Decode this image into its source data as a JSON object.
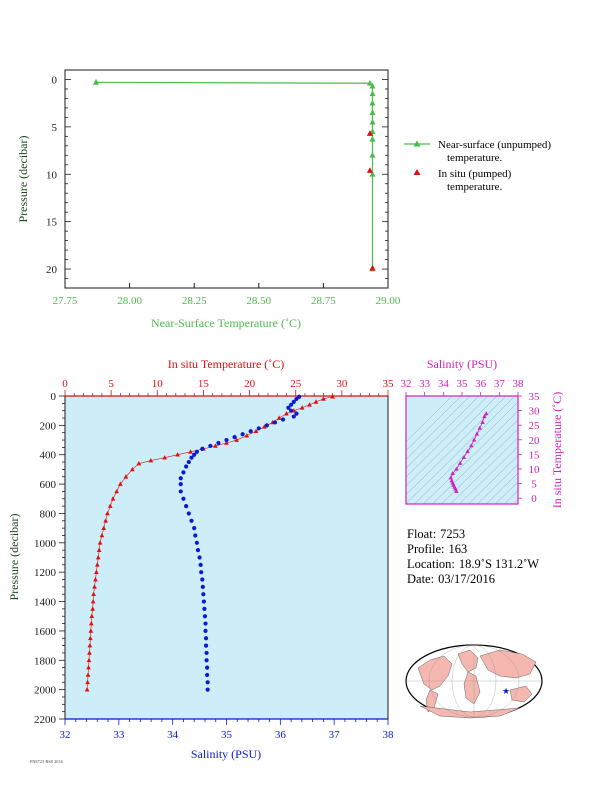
{
  "top_plot": {
    "xlabel": "Near-Surface Temperature (˚C)",
    "ylabel": "Pressure (decibar)",
    "legend": [
      {
        "label_line1": "Near-surface (unpumped)",
        "label_line2": "temperature.",
        "color": "#4cbb4c"
      },
      {
        "label_line1": "In situ (pumped)",
        "label_line2": "temperature.",
        "color": "#e01010"
      }
    ]
  },
  "profile_plot": {
    "top_xlabel": "In situ Temperature (˚C)",
    "bottom_xlabel": "Salinity (PSU)",
    "ylabel": "Pressure (decibar)"
  },
  "ts_plot": {
    "top_xlabel": "Salinity (PSU)",
    "right_ylabel": "In situ Temperature (˚C)"
  },
  "float_info": {
    "float_label": "Float:",
    "float_value": "7253",
    "profile_label": "Profile:",
    "profile_value": "163",
    "location_label": "Location:",
    "location_value": "18.9˚S  131.2˚W",
    "date_label": "Date:",
    "date_value": "03/17/2016"
  },
  "footnote": "FN8723 RS8 2016",
  "colors": {
    "surface_green": "#4cbb4c",
    "temp_red": "#e01010",
    "salinity_blue": "#0a1ad0",
    "ts_magenta": "#d020c0",
    "axis_dark": "#1a1a1a",
    "panel_fill": "#cdeef8"
  },
  "chart_data": [
    {
      "type": "line",
      "name": "near-surface-temperature",
      "xlim": [
        27.75,
        29.0
      ],
      "ylim": [
        22,
        -1
      ],
      "xticks": [
        27.75,
        28.0,
        28.25,
        28.5,
        28.75,
        29.0
      ],
      "yticks": [
        0,
        5,
        10,
        15,
        20
      ],
      "series": [
        {
          "name": "Near-surface (unpumped) temperature.",
          "marker": "triangle",
          "color": "#4cbb4c",
          "points": [
            [
              27.87,
              0.3
            ],
            [
              28.93,
              0.4
            ],
            [
              28.94,
              0.7
            ],
            [
              28.94,
              1.5
            ],
            [
              28.94,
              2.5
            ],
            [
              28.94,
              3.5
            ],
            [
              28.94,
              4.5
            ],
            [
              28.94,
              5.5
            ],
            [
              28.94,
              6.3
            ],
            [
              28.94,
              8.0
            ],
            [
              28.94,
              10.0
            ],
            [
              28.94,
              20.0
            ]
          ]
        },
        {
          "name": "In situ (pumped) temperature.",
          "marker": "triangle",
          "color": "#e01010",
          "points": [
            [
              28.93,
              5.7
            ],
            [
              28.93,
              9.6
            ],
            [
              28.94,
              19.9
            ]
          ]
        }
      ]
    },
    {
      "type": "scatter",
      "name": "temperature-salinity-profile",
      "ylim": [
        2200,
        0
      ],
      "yticks": [
        0,
        200,
        400,
        600,
        800,
        1000,
        1200,
        1400,
        1600,
        1800,
        2000,
        2200
      ],
      "temperature_axis": {
        "xlim": [
          0,
          35
        ],
        "xticks": [
          0,
          5,
          10,
          15,
          20,
          25,
          30,
          35
        ]
      },
      "salinity_axis": {
        "xlim": [
          32,
          38
        ],
        "xticks": [
          32,
          33,
          34,
          35,
          36,
          37,
          38
        ]
      },
      "series": [
        {
          "name": "In situ Temperature",
          "marker": "triangle",
          "color": "#e01010",
          "points": [
            [
              29.0,
              5
            ],
            [
              28.0,
              20
            ],
            [
              27.2,
              40
            ],
            [
              26.5,
              60
            ],
            [
              25.7,
              80
            ],
            [
              24.8,
              100
            ],
            [
              24.0,
              120
            ],
            [
              23.2,
              150
            ],
            [
              22.5,
              180
            ],
            [
              21.6,
              210
            ],
            [
              20.7,
              240
            ],
            [
              19.7,
              270
            ],
            [
              18.6,
              300
            ],
            [
              17.5,
              320
            ],
            [
              16.3,
              340
            ],
            [
              15.0,
              360
            ],
            [
              13.6,
              380
            ],
            [
              12.2,
              400
            ],
            [
              10.8,
              420
            ],
            [
              9.3,
              440
            ],
            [
              8.0,
              460
            ],
            [
              7.3,
              500
            ],
            [
              6.6,
              550
            ],
            [
              6.0,
              600
            ],
            [
              5.6,
              650
            ],
            [
              5.2,
              700
            ],
            [
              4.9,
              750
            ],
            [
              4.6,
              800
            ],
            [
              4.4,
              850
            ],
            [
              4.2,
              900
            ],
            [
              4.0,
              950
            ],
            [
              3.8,
              1000
            ],
            [
              3.7,
              1050
            ],
            [
              3.6,
              1100
            ],
            [
              3.5,
              1150
            ],
            [
              3.4,
              1200
            ],
            [
              3.3,
              1250
            ],
            [
              3.2,
              1300
            ],
            [
              3.1,
              1350
            ],
            [
              3.05,
              1400
            ],
            [
              3.0,
              1450
            ],
            [
              2.9,
              1500
            ],
            [
              2.85,
              1550
            ],
            [
              2.8,
              1600
            ],
            [
              2.75,
              1650
            ],
            [
              2.7,
              1700
            ],
            [
              2.65,
              1750
            ],
            [
              2.6,
              1800
            ],
            [
              2.55,
              1850
            ],
            [
              2.5,
              1900
            ],
            [
              2.45,
              1950
            ],
            [
              2.4,
              2000
            ]
          ]
        },
        {
          "name": "Salinity",
          "marker": "dot",
          "color": "#0a1ad0",
          "points": [
            [
              36.35,
              5
            ],
            [
              36.3,
              20
            ],
            [
              36.25,
              40
            ],
            [
              36.2,
              60
            ],
            [
              36.15,
              80
            ],
            [
              36.2,
              100
            ],
            [
              36.3,
              120
            ],
            [
              36.25,
              140
            ],
            [
              36.05,
              160
            ],
            [
              35.9,
              180
            ],
            [
              35.75,
              200
            ],
            [
              35.6,
              220
            ],
            [
              35.45,
              240
            ],
            [
              35.3,
              260
            ],
            [
              35.15,
              280
            ],
            [
              35.0,
              300
            ],
            [
              34.85,
              320
            ],
            [
              34.7,
              340
            ],
            [
              34.55,
              360
            ],
            [
              34.45,
              380
            ],
            [
              34.4,
              400
            ],
            [
              34.35,
              420
            ],
            [
              34.3,
              450
            ],
            [
              34.25,
              480
            ],
            [
              34.2,
              520
            ],
            [
              34.15,
              560
            ],
            [
              34.15,
              600
            ],
            [
              34.15,
              650
            ],
            [
              34.2,
              700
            ],
            [
              34.25,
              750
            ],
            [
              34.3,
              800
            ],
            [
              34.35,
              850
            ],
            [
              34.4,
              900
            ],
            [
              34.42,
              950
            ],
            [
              34.45,
              1000
            ],
            [
              34.47,
              1050
            ],
            [
              34.5,
              1100
            ],
            [
              34.52,
              1150
            ],
            [
              34.53,
              1200
            ],
            [
              34.55,
              1250
            ],
            [
              34.56,
              1300
            ],
            [
              34.57,
              1350
            ],
            [
              34.58,
              1400
            ],
            [
              34.59,
              1450
            ],
            [
              34.6,
              1500
            ],
            [
              34.61,
              1550
            ],
            [
              34.61,
              1600
            ],
            [
              34.62,
              1650
            ],
            [
              34.62,
              1700
            ],
            [
              34.63,
              1750
            ],
            [
              34.63,
              1800
            ],
            [
              34.64,
              1850
            ],
            [
              34.64,
              1900
            ],
            [
              34.65,
              1950
            ],
            [
              34.65,
              2000
            ]
          ]
        }
      ]
    },
    {
      "type": "scatter",
      "name": "temperature-salinity-diagram",
      "xlim": [
        32,
        38
      ],
      "ylim": [
        -2,
        35
      ],
      "xticks": [
        32,
        33,
        34,
        35,
        36,
        37,
        38
      ],
      "yticks": [
        0,
        5,
        10,
        15,
        20,
        25,
        30,
        35
      ],
      "series": [
        {
          "name": "T-S",
          "marker": "triangle",
          "color": "#d020c0",
          "points": [
            [
              34.7,
              2.4
            ],
            [
              34.65,
              3.2
            ],
            [
              34.6,
              3.8
            ],
            [
              34.55,
              4.5
            ],
            [
              34.5,
              5.2
            ],
            [
              34.45,
              6.0
            ],
            [
              34.4,
              7.0
            ],
            [
              34.5,
              8.5
            ],
            [
              34.7,
              10
            ],
            [
              34.9,
              12
            ],
            [
              35.1,
              14
            ],
            [
              35.3,
              16
            ],
            [
              35.5,
              18
            ],
            [
              35.65,
              20
            ],
            [
              35.8,
              22
            ],
            [
              35.95,
              24
            ],
            [
              36.1,
              26
            ],
            [
              36.2,
              28
            ],
            [
              36.3,
              29
            ]
          ]
        }
      ]
    }
  ]
}
